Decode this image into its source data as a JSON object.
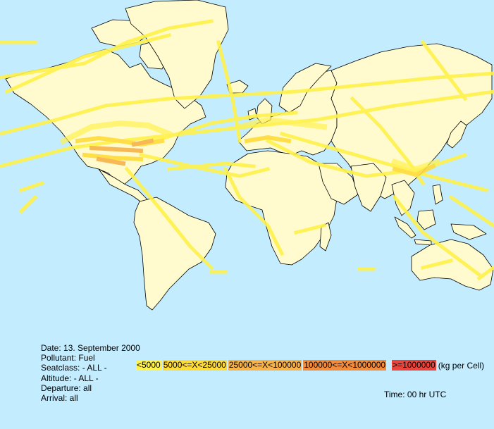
{
  "map": {
    "background_color": "#c4ecff",
    "land_color": "#fffbcf",
    "border_color": "#000000",
    "projection": "mercator"
  },
  "info": {
    "date": "Date: 13. September 2000",
    "pollutant": "Pollutant: Fuel",
    "seatclass": "Seatclass: - ALL -",
    "altitude": "Altitude: - ALL -",
    "departure": "Departure: all",
    "arrival": "Arrival: all"
  },
  "legend": {
    "items": [
      {
        "label": "<5000",
        "color": "#fff24a"
      },
      {
        "label": "5000<=X<25000",
        "color": "#ffdb3a"
      },
      {
        "label": "25000<=X<100000",
        "color": "#f7b24a"
      },
      {
        "label": "100000<=X<1000000",
        "color": "#f28c3a"
      },
      {
        "label": ">=1000000",
        "color": "#e8453c"
      }
    ],
    "unit": "(kg per Cell)"
  },
  "time": "Time: 00 hr UTC"
}
